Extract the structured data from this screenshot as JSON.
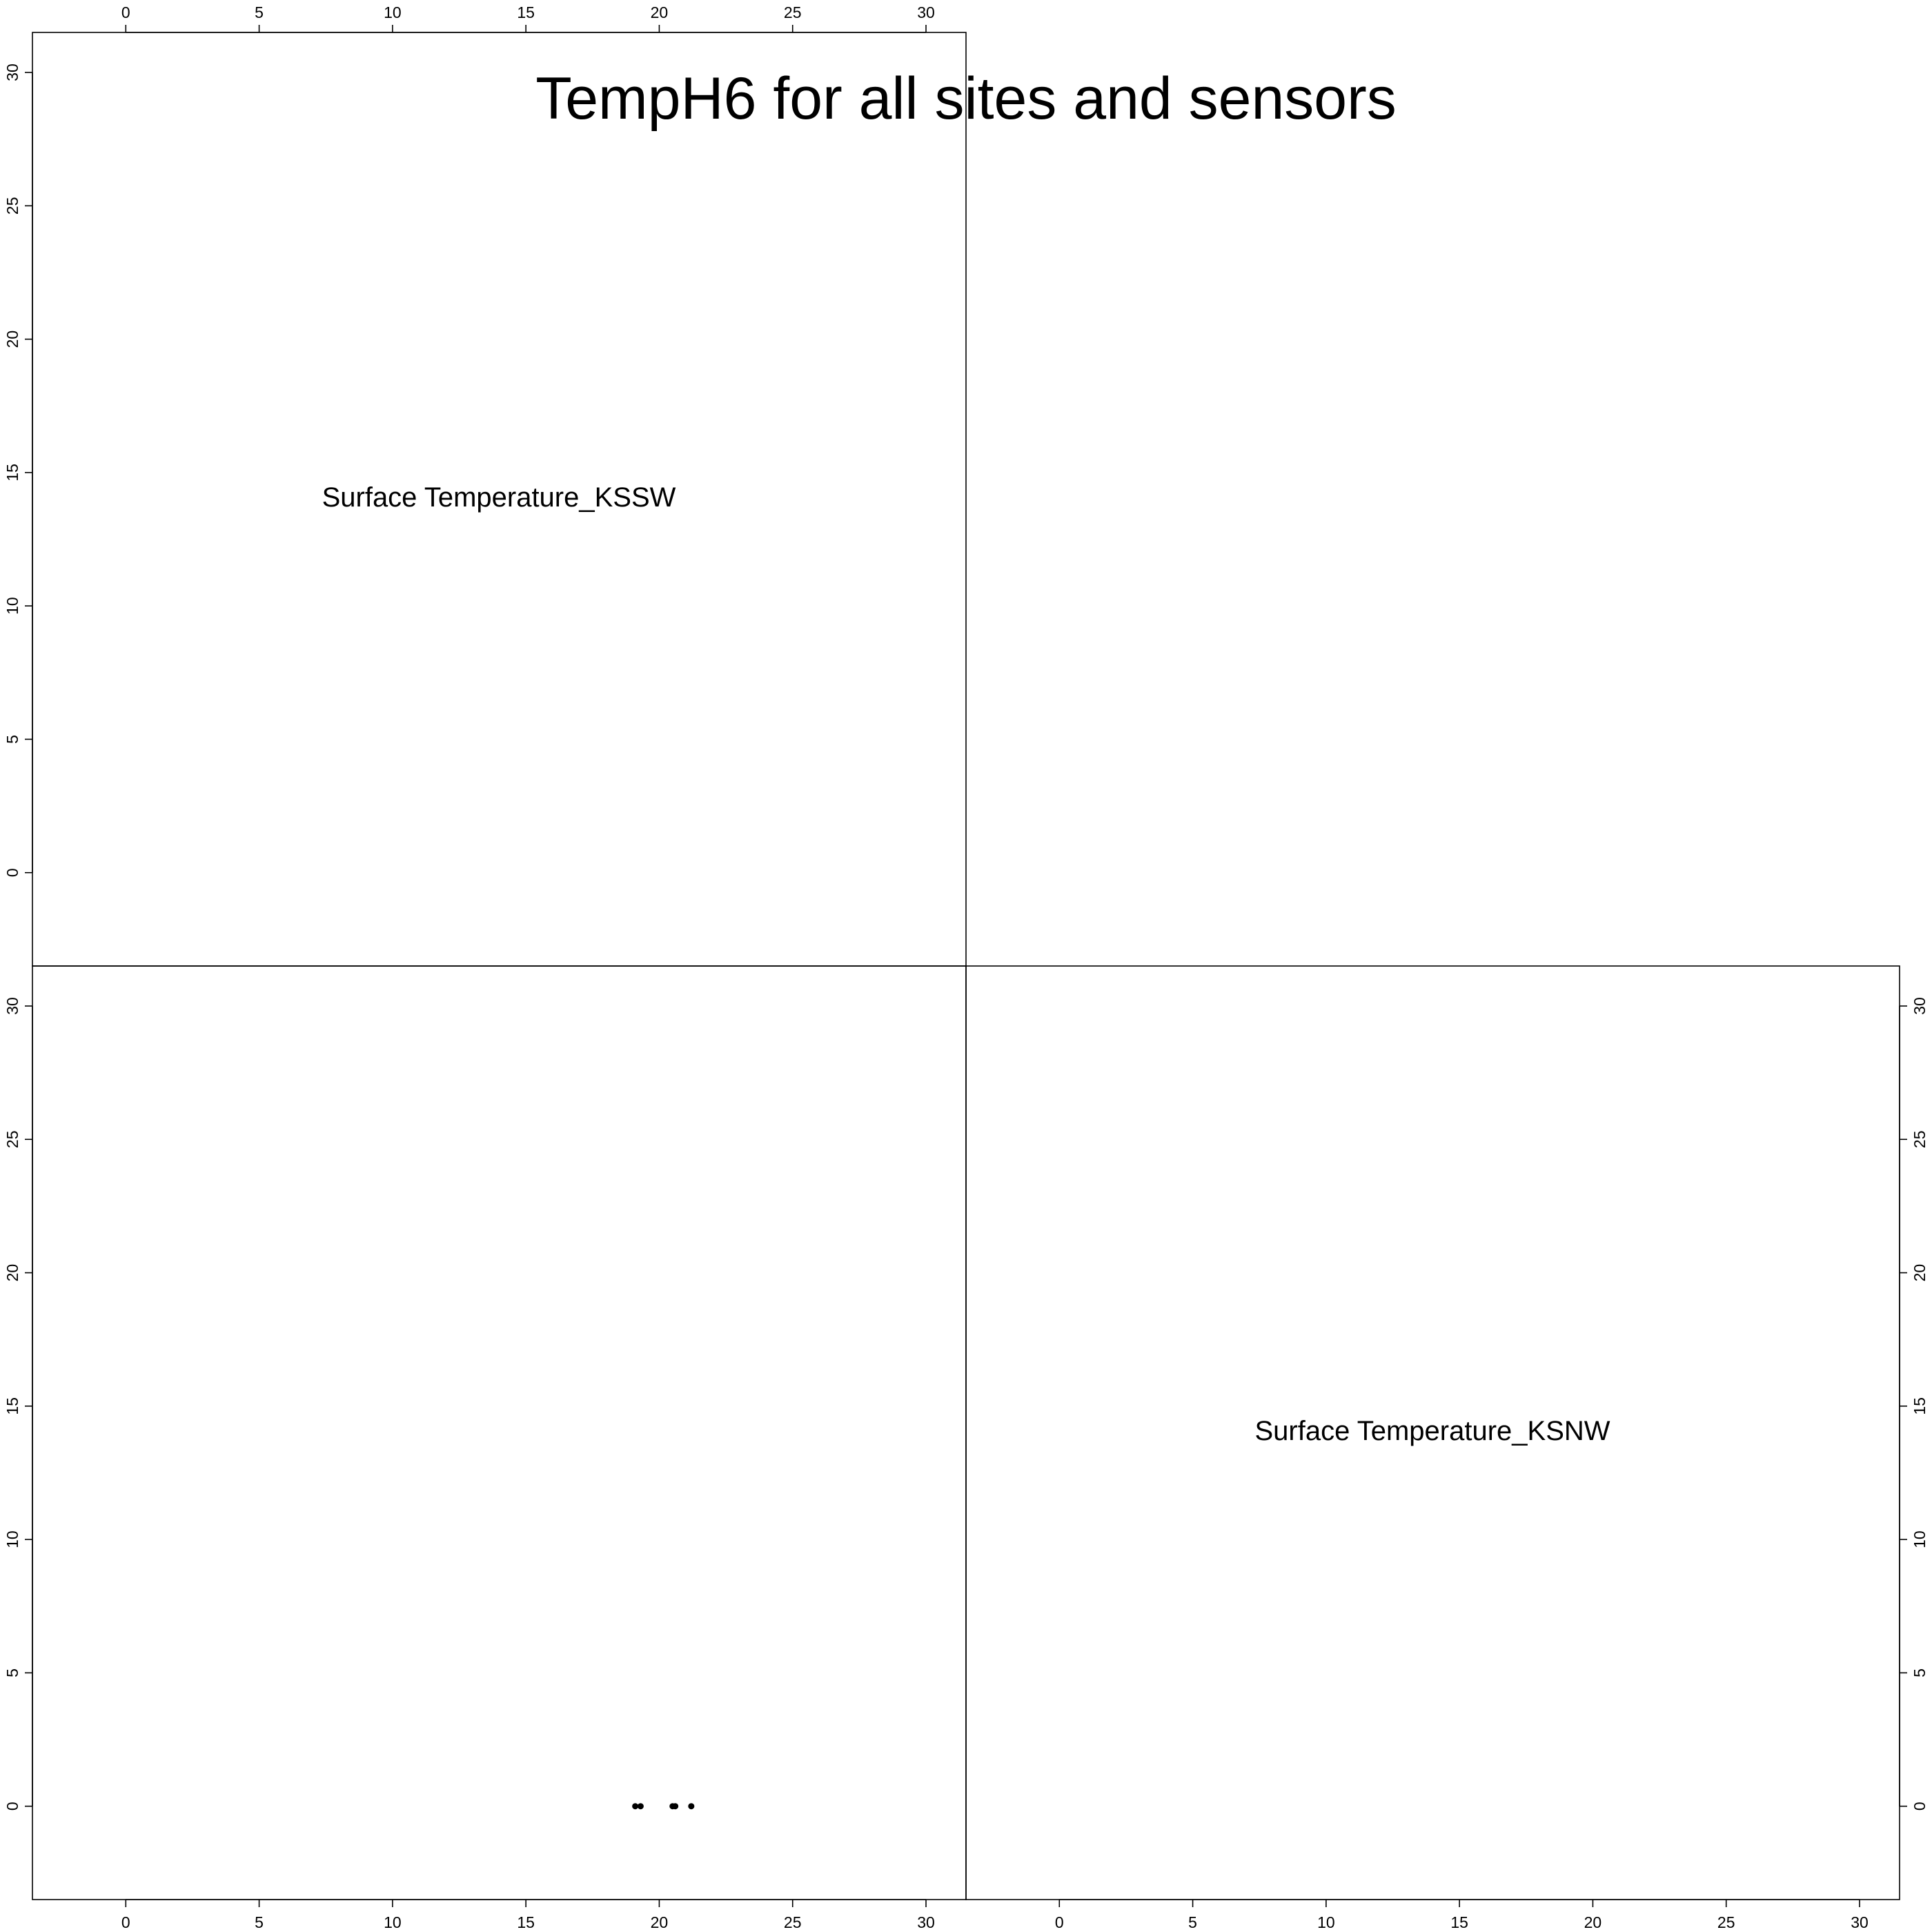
{
  "chart_data": {
    "type": "scatter",
    "title": "TempH6 for all sites and sensors",
    "layout": "scatterplot-matrix",
    "xlim": [
      -3.5,
      31.5
    ],
    "ylim": [
      -3.5,
      31.5
    ],
    "ticks": [
      0,
      5,
      10,
      15,
      20,
      25,
      30
    ],
    "variables": [
      "Surface Temperature_KSSW",
      "Surface Temperature_KSNW"
    ],
    "panels": [
      {
        "row": 2,
        "col": 1,
        "xvar": "Surface Temperature_KSSW",
        "yvar": "Surface Temperature_KSNW",
        "points": [
          {
            "x": 19.1,
            "y": 0
          },
          {
            "x": 19.3,
            "y": 0
          },
          {
            "x": 20.5,
            "y": 0
          },
          {
            "x": 20.6,
            "y": 0
          },
          {
            "x": 21.2,
            "y": 0
          }
        ]
      }
    ]
  }
}
